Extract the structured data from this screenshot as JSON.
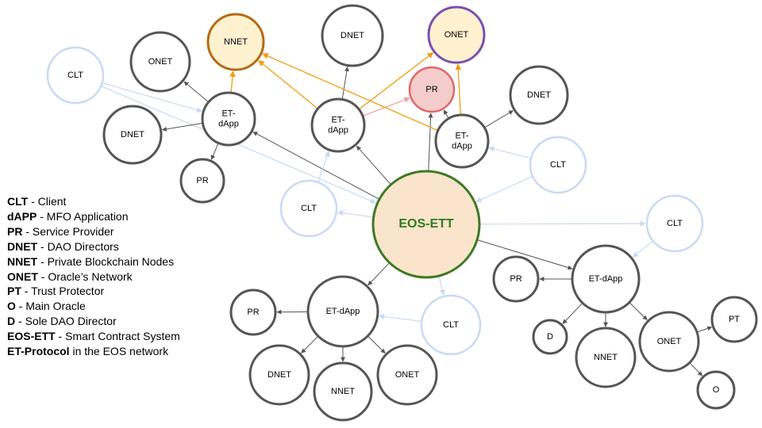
{
  "colors": {
    "node_stroke": "#555555",
    "client_stroke": "#c9daf2",
    "center_fill": "#fbe4cc",
    "center_stroke": "#3d7a22",
    "nnet_fill": "#fdf1cf",
    "nnet_stroke": "#b46a12",
    "onet_top_fill": "#fdf1cf",
    "onet_top_stroke": "#7a4fb0",
    "pr_top_fill": "#f4cccc",
    "pr_top_stroke": "#e06666",
    "edge_dark": "#555555",
    "edge_orange": "#f39c12",
    "edge_pink": "#e6a0a0",
    "edge_light_blue": "#c9daf2"
  },
  "diagram": {
    "nodes": [
      {
        "id": "center",
        "label": "EOS-ETT",
        "style": "center"
      },
      {
        "id": "nnet_top",
        "label": "NNET",
        "style": "nnet"
      },
      {
        "id": "dnet_top",
        "label": "DNET",
        "style": "plain"
      },
      {
        "id": "onet_top",
        "label": "ONET",
        "style": "onet_top"
      },
      {
        "id": "pr_top",
        "label": "PR",
        "style": "pr_top"
      },
      {
        "id": "onet_left",
        "label": "ONET",
        "style": "plain"
      },
      {
        "id": "clt_topleft",
        "label": "CLT",
        "style": "client"
      },
      {
        "id": "et_left",
        "label": "ET-\ndApp",
        "style": "plain"
      },
      {
        "id": "dnet_left",
        "label": "DNET",
        "style": "plain"
      },
      {
        "id": "pr_left",
        "label": "PR",
        "style": "plain"
      },
      {
        "id": "et_mid",
        "label": "ET-\ndApp",
        "style": "plain"
      },
      {
        "id": "clt_mid",
        "label": "CLT",
        "style": "client"
      },
      {
        "id": "et_right",
        "label": "ET-\ndApp",
        "style": "plain"
      },
      {
        "id": "dnet_right",
        "label": "DNET",
        "style": "plain"
      },
      {
        "id": "clt_right1",
        "label": "CLT",
        "style": "client"
      },
      {
        "id": "clt_right2",
        "label": "CLT",
        "style": "client"
      },
      {
        "id": "et_br",
        "label": "ET-dApp",
        "style": "plain"
      },
      {
        "id": "pr_br",
        "label": "PR",
        "style": "plain"
      },
      {
        "id": "d_br",
        "label": "D",
        "style": "plain"
      },
      {
        "id": "nnet_br",
        "label": "NNET",
        "style": "plain"
      },
      {
        "id": "onet_br",
        "label": "ONET",
        "style": "plain"
      },
      {
        "id": "pt_br",
        "label": "PT",
        "style": "plain"
      },
      {
        "id": "o_br",
        "label": "O",
        "style": "plain"
      },
      {
        "id": "et_bot",
        "label": "ET-dApp",
        "style": "plain"
      },
      {
        "id": "pr_bot",
        "label": "PR",
        "style": "plain"
      },
      {
        "id": "clt_bot",
        "label": "CLT",
        "style": "client"
      },
      {
        "id": "dnet_bot",
        "label": "DNET",
        "style": "plain"
      },
      {
        "id": "nnet_bot",
        "label": "NNET",
        "style": "plain"
      },
      {
        "id": "onet_bot",
        "label": "ONET",
        "style": "plain"
      }
    ],
    "edges": [
      {
        "from": "center",
        "to": "et_left",
        "style": "dark"
      },
      {
        "from": "center",
        "to": "et_mid",
        "style": "dark"
      },
      {
        "from": "center",
        "to": "pr_top",
        "style": "dark"
      },
      {
        "from": "center",
        "to": "et_br",
        "style": "dark"
      },
      {
        "from": "center",
        "to": "et_bot",
        "style": "dark"
      },
      {
        "from": "center",
        "to": "clt_mid",
        "style": "light"
      },
      {
        "from": "clt_topleft",
        "to": "center",
        "style": "light"
      },
      {
        "from": "clt_topleft",
        "to": "et_left",
        "style": "light"
      },
      {
        "from": "clt_mid",
        "to": "et_mid",
        "style": "light"
      },
      {
        "from": "clt_right1",
        "to": "et_right",
        "style": "light"
      },
      {
        "from": "clt_right1",
        "to": "center",
        "style": "light"
      },
      {
        "from": "clt_right2",
        "to": "et_br",
        "style": "light"
      },
      {
        "from": "center",
        "to": "clt_right2",
        "style": "light"
      },
      {
        "from": "clt_bot",
        "to": "et_bot",
        "style": "light"
      },
      {
        "from": "center",
        "to": "clt_bot",
        "style": "light"
      },
      {
        "from": "et_left",
        "to": "onet_left",
        "style": "dark"
      },
      {
        "from": "et_left",
        "to": "dnet_left",
        "style": "dark"
      },
      {
        "from": "et_left",
        "to": "pr_left",
        "style": "dark"
      },
      {
        "from": "et_left",
        "to": "nnet_top",
        "style": "orange"
      },
      {
        "from": "et_mid",
        "to": "dnet_top",
        "style": "dark"
      },
      {
        "from": "et_mid",
        "to": "nnet_top",
        "style": "orange"
      },
      {
        "from": "et_mid",
        "to": "onet_top",
        "style": "orange"
      },
      {
        "from": "et_mid",
        "to": "pr_top",
        "style": "pink"
      },
      {
        "from": "et_right",
        "to": "nnet_top",
        "style": "orange"
      },
      {
        "from": "et_right",
        "to": "onet_top",
        "style": "orange"
      },
      {
        "from": "et_right",
        "to": "pr_top",
        "style": "dark"
      },
      {
        "from": "et_right",
        "to": "dnet_right",
        "style": "dark"
      },
      {
        "from": "et_br",
        "to": "pr_br",
        "style": "dark"
      },
      {
        "from": "et_br",
        "to": "d_br",
        "style": "dark"
      },
      {
        "from": "et_br",
        "to": "nnet_br",
        "style": "dark"
      },
      {
        "from": "et_br",
        "to": "onet_br",
        "style": "dark"
      },
      {
        "from": "onet_br",
        "to": "pt_br",
        "style": "dark"
      },
      {
        "from": "onet_br",
        "to": "o_br",
        "style": "dark"
      },
      {
        "from": "et_bot",
        "to": "pr_bot",
        "style": "dark"
      },
      {
        "from": "et_bot",
        "to": "dnet_bot",
        "style": "dark"
      },
      {
        "from": "et_bot",
        "to": "nnet_bot",
        "style": "dark"
      },
      {
        "from": "et_bot",
        "to": "onet_bot",
        "style": "dark"
      }
    ]
  },
  "legend": [
    {
      "abbr": "CLT",
      "desc": " - Client"
    },
    {
      "abbr": "dAPP",
      "desc": " - MFO Application"
    },
    {
      "abbr": "PR",
      "desc": " - Service Provider"
    },
    {
      "abbr": "DNET",
      "desc": " - DAO Directors"
    },
    {
      "abbr": "NNET",
      "desc": " - Private Blockchain Nodes"
    },
    {
      "abbr": "ONET",
      "desc": " - Oracle’s Network"
    },
    {
      "abbr": "PT",
      "desc": " - Trust Protector"
    },
    {
      "abbr": "O",
      "desc": " - Main Oracle"
    },
    {
      "abbr": "D",
      "desc": " - Sole DAO Director"
    },
    {
      "abbr": "EOS-ETT",
      "desc": " - Smart Contract System"
    },
    {
      "abbr": "ET-Protocol",
      "desc": " in the EOS network"
    }
  ]
}
